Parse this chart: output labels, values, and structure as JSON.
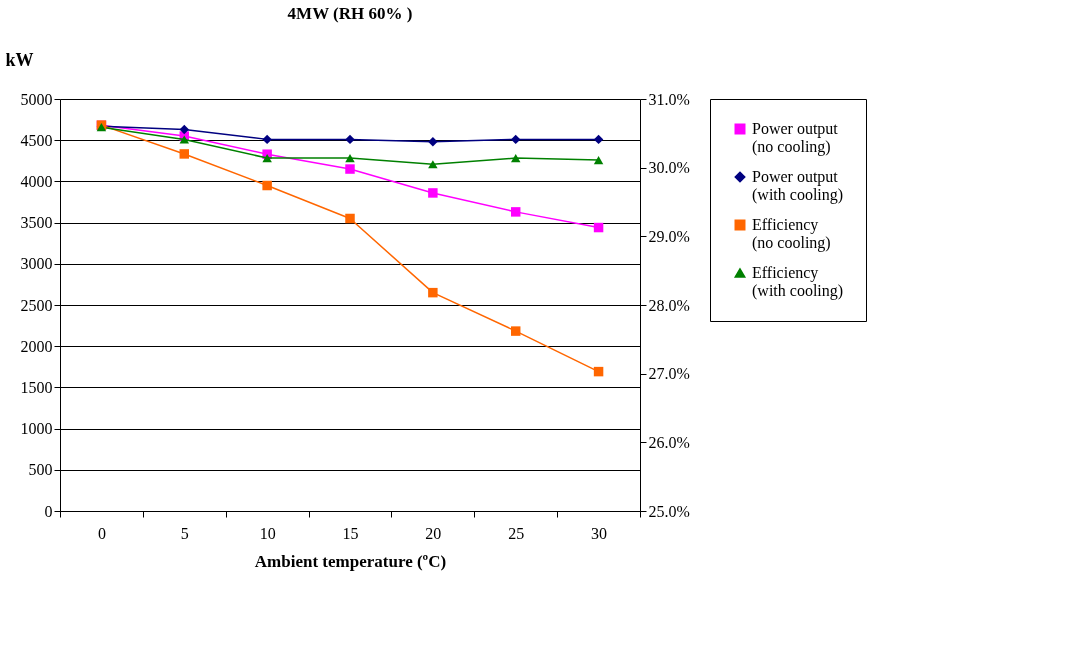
{
  "chart_data": {
    "type": "line",
    "title": "4MW (RH 60% )",
    "xlabel": "Ambient temperature (ºC)",
    "ylabel": "kW",
    "categories": [
      "0",
      "5",
      "10",
      "15",
      "20",
      "25",
      "30"
    ],
    "ylim": [
      0,
      5000
    ],
    "yticks": [
      0,
      500,
      1000,
      1500,
      2000,
      2500,
      3000,
      3500,
      4000,
      4500,
      5000
    ],
    "y2lim": [
      25,
      31
    ],
    "y2ticks": [
      {
        "value": 25,
        "label": "25.0%"
      },
      {
        "value": 26,
        "label": "26.0%"
      },
      {
        "value": 27,
        "label": "27.0%"
      },
      {
        "value": 28,
        "label": "28.0%"
      },
      {
        "value": 29,
        "label": "29.0%"
      },
      {
        "value": 30,
        "label": "30.0%"
      },
      {
        "value": 31,
        "label": "31.0%"
      }
    ],
    "grid": "y",
    "legend": "right",
    "series": [
      {
        "name": "Power output (no cooling)",
        "color": "#ff00ff",
        "marker": "square",
        "values": [
          4680,
          4550,
          4330,
          4150,
          3860,
          3630,
          3440
        ]
      },
      {
        "name": "Power output (with cooling)",
        "color": "#000080",
        "marker": "diamond",
        "values": [
          4670,
          4630,
          4510,
          4510,
          4480,
          4510,
          4510
        ]
      },
      {
        "name": "Efficiency (no cooling)",
        "color": "#ff6600",
        "marker": "square",
        "axis": "y2",
        "values": [
          30.62,
          30.2,
          29.74,
          29.26,
          28.18,
          27.62,
          27.03
        ]
      },
      {
        "name": "Efficiency (with cooling)",
        "color": "#008000",
        "marker": "triangle",
        "axis": "y2",
        "values": [
          30.59,
          30.41,
          30.14,
          30.14,
          30.05,
          30.14,
          30.11
        ]
      }
    ]
  }
}
